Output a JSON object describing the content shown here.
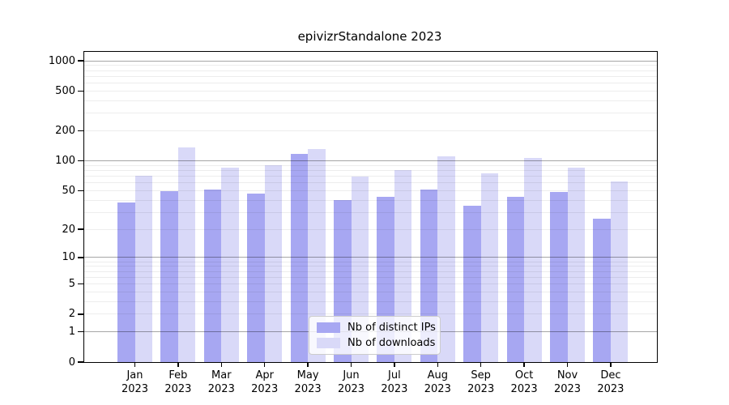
{
  "chart_data": {
    "type": "bar",
    "title": "epivizrStandalone 2023",
    "months": [
      "Jan",
      "Feb",
      "Mar",
      "Apr",
      "May",
      "Jun",
      "Jul",
      "Aug",
      "Sep",
      "Oct",
      "Nov",
      "Dec"
    ],
    "year": "2023",
    "series": [
      {
        "name": "Nb of distinct IPs",
        "color": "#a7a7f2",
        "values": [
          38,
          49,
          51,
          47,
          117,
          40,
          43,
          51,
          35,
          43,
          48,
          26
        ]
      },
      {
        "name": "Nb of downloads",
        "color": "#d9d9f8",
        "values": [
          70,
          137,
          86,
          91,
          132,
          69,
          80,
          111,
          75,
          106,
          85,
          62
        ]
      }
    ],
    "y_ticks": [
      1000,
      500,
      200,
      100,
      50,
      20,
      10,
      5,
      2,
      1,
      0
    ],
    "y_scale": "log1p",
    "ylim": [
      0,
      1000
    ],
    "grid": true,
    "legend_position": "lower center",
    "decade_gridlines": [
      1,
      10,
      100,
      1000
    ],
    "minor_gridlines": [
      2,
      3,
      4,
      5,
      6,
      7,
      8,
      9,
      20,
      30,
      40,
      50,
      60,
      70,
      80,
      90,
      200,
      300,
      400,
      500,
      600,
      700,
      800,
      900
    ]
  }
}
